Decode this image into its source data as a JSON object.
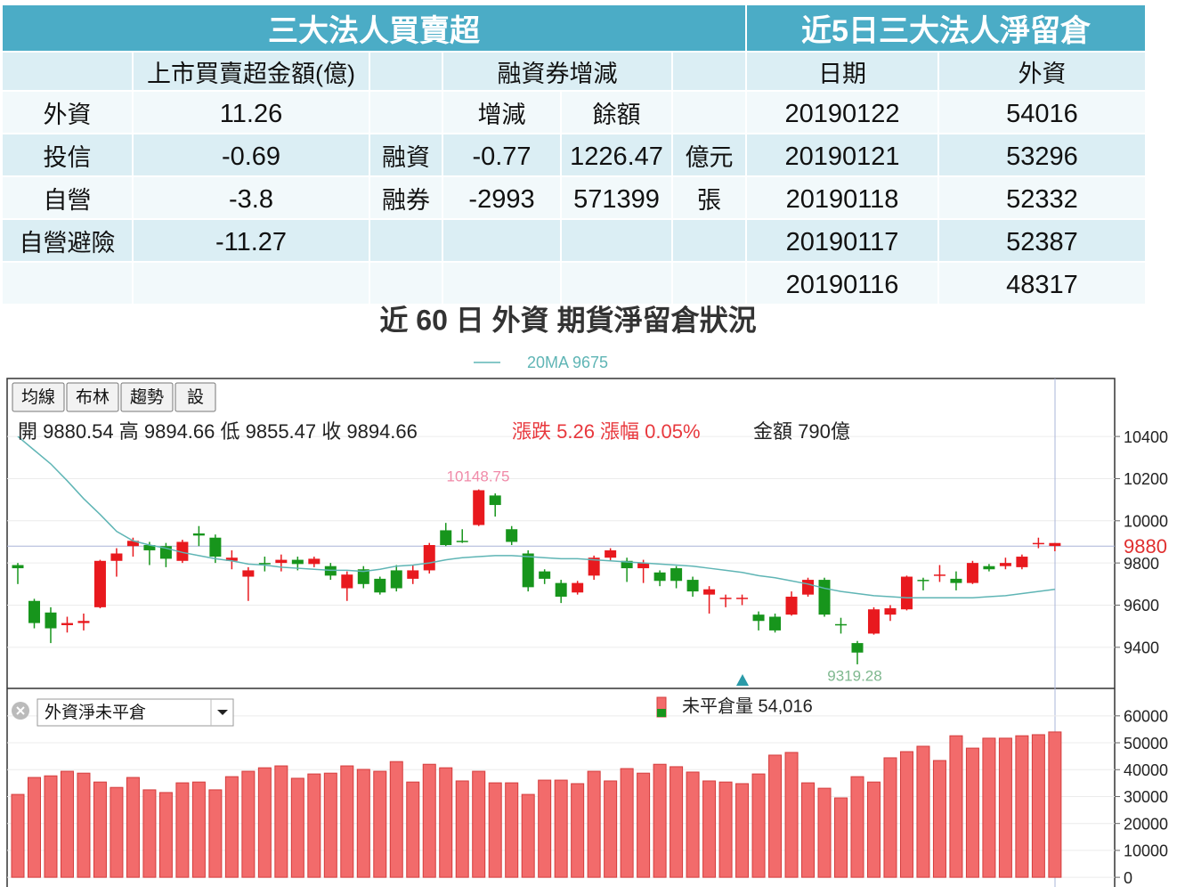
{
  "table": {
    "header_left": "三大法人買賣超",
    "header_right": "近5日三大法人淨留倉",
    "columns": {
      "amount": "上市買賣超金額(億)",
      "margin": "融資券增減",
      "change": "增減",
      "balance": "餘額",
      "date": "日期",
      "foreign": "外資"
    },
    "institutions": [
      {
        "name": "外資",
        "amount": 11.26
      },
      {
        "name": "投信",
        "amount": -0.69
      },
      {
        "name": "自營",
        "amount": -3.8
      },
      {
        "name": "自營避險",
        "amount": -11.27
      }
    ],
    "margin_rows": [
      {
        "name": "融資",
        "change": -0.77,
        "balance": 1226.47,
        "unit": "億元"
      },
      {
        "name": "融券",
        "change": -2993,
        "balance": 571399,
        "unit": "張"
      }
    ],
    "positions": [
      {
        "date": "20190122",
        "foreign": 54016
      },
      {
        "date": "20190121",
        "foreign": 53296
      },
      {
        "date": "20190118",
        "foreign": 52332
      },
      {
        "date": "20190117",
        "foreign": 52387
      },
      {
        "date": "20190116",
        "foreign": 48317
      }
    ]
  },
  "chart_title": "近 60 日 外資 期貨淨留倉狀況",
  "chart_data": [
    {
      "type": "candlestick",
      "legend_text": "20MA 9675",
      "buttons": [
        "均線",
        "布林",
        "趨勢",
        "設"
      ],
      "info": [
        {
          "text": "開 9880.54 高 9894.66 低 9855.47 收 9894.66",
          "color": "#222222"
        },
        {
          "text": "漲跌 5.26 漲幅 0.05%",
          "color": "#e8383d"
        },
        {
          "text": "金額 790億",
          "color": "#222222"
        }
      ],
      "annotations": [
        {
          "text": "10148.75",
          "color": "#f08aa8"
        },
        {
          "text": "9319.28",
          "color": "#7fb88f"
        }
      ],
      "current_price": 9880,
      "up_color": "#e8191e",
      "down_color": "#17951c",
      "ma_color": "#5fb5b5",
      "open": [
        9790,
        9620,
        9565,
        9505,
        9515,
        9590,
        9810,
        9880,
        9885,
        9880,
        9810,
        9940,
        9920,
        9810,
        9735,
        9800,
        9800,
        9815,
        9795,
        9785,
        9680,
        9770,
        9725,
        9765,
        9725,
        9765,
        9955,
        9905,
        9980,
        10120,
        9960,
        9845,
        9760,
        9705,
        9660,
        9740,
        9825,
        9810,
        9775,
        9755,
        9775,
        9720,
        9650,
        9630,
        9635,
        9555,
        9545,
        9555,
        9650,
        9720,
        9510,
        9420,
        9465,
        9555,
        9580,
        9720,
        9740,
        9725,
        9705,
        9785,
        9785,
        9780,
        9890,
        9880.54
      ],
      "close": [
        9775,
        9515,
        9490,
        9515,
        9525,
        9810,
        9845,
        9905,
        9860,
        9820,
        9900,
        9930,
        9830,
        9825,
        9765,
        9795,
        9815,
        9795,
        9820,
        9740,
        9745,
        9700,
        9660,
        9680,
        9765,
        9885,
        9885,
        9900,
        10145,
        10075,
        9900,
        9685,
        9725,
        9640,
        9705,
        9825,
        9860,
        9775,
        9800,
        9715,
        9715,
        9665,
        9675,
        9635,
        9635,
        9525,
        9480,
        9640,
        9720,
        9555,
        9505,
        9375,
        9580,
        9585,
        9735,
        9715,
        9745,
        9705,
        9800,
        9770,
        9800,
        9830,
        9895,
        9894.66
      ],
      "high": [
        9800,
        9630,
        9590,
        9545,
        9560,
        9815,
        9870,
        9920,
        9900,
        9895,
        9910,
        9975,
        9935,
        9860,
        9780,
        9830,
        9840,
        9830,
        9830,
        9800,
        9760,
        9785,
        9735,
        9790,
        9790,
        9895,
        9990,
        9960,
        10148.75,
        10130,
        9975,
        9860,
        9770,
        9720,
        9715,
        9835,
        9870,
        9825,
        9815,
        9765,
        9785,
        9735,
        9690,
        9650,
        9650,
        9570,
        9560,
        9665,
        9730,
        9730,
        9540,
        9430,
        9590,
        9600,
        9740,
        9730,
        9790,
        9760,
        9810,
        9795,
        9825,
        9840,
        9920,
        9894.66
      ],
      "low": [
        9700,
        9490,
        9420,
        9470,
        9480,
        9585,
        9735,
        9830,
        9790,
        9780,
        9800,
        9880,
        9800,
        9770,
        9620,
        9760,
        9760,
        9765,
        9780,
        9720,
        9620,
        9680,
        9650,
        9665,
        9700,
        9750,
        9880,
        9895,
        9975,
        10020,
        9885,
        9665,
        9700,
        9610,
        9650,
        9720,
        9810,
        9710,
        9705,
        9690,
        9680,
        9640,
        9560,
        9590,
        9600,
        9480,
        9470,
        9550,
        9640,
        9545,
        9465,
        9319.28,
        9460,
        9525,
        9575,
        9670,
        9710,
        9670,
        9700,
        9760,
        9770,
        9770,
        9870,
        9855.47
      ],
      "ma": [
        10400,
        10335,
        10270,
        10190,
        10105,
        10030,
        9950,
        9905,
        9885,
        9870,
        9850,
        9835,
        9820,
        9810,
        9795,
        9790,
        9780,
        9775,
        9770,
        9765,
        9765,
        9760,
        9770,
        9785,
        9790,
        9800,
        9815,
        9825,
        9830,
        9835,
        9835,
        9830,
        9825,
        9820,
        9820,
        9815,
        9810,
        9805,
        9800,
        9795,
        9790,
        9785,
        9775,
        9765,
        9755,
        9740,
        9730,
        9715,
        9700,
        9680,
        9665,
        9655,
        9645,
        9640,
        9635,
        9635,
        9635,
        9635,
        9635,
        9640,
        9645,
        9655,
        9665,
        9675
      ],
      "ylim": [
        9205,
        10675
      ],
      "yticks": [
        9400,
        9600,
        9800,
        10000,
        10200,
        10400
      ],
      "grid": true
    },
    {
      "type": "bar",
      "dropdown": "外資淨未平倉",
      "legend_text": "未平倉量 54,016",
      "color": "#f26b6b",
      "values": [
        30800,
        37100,
        37700,
        39400,
        38700,
        35400,
        33400,
        37100,
        32500,
        31500,
        35100,
        35400,
        32500,
        37400,
        39400,
        40700,
        41400,
        36800,
        38400,
        38700,
        41400,
        40100,
        39400,
        43000,
        35400,
        42000,
        40700,
        35800,
        39400,
        35100,
        35100,
        30800,
        36100,
        36100,
        34800,
        39400,
        35800,
        40400,
        38700,
        42000,
        41100,
        39100,
        35800,
        35400,
        34800,
        38400,
        45400,
        46400,
        35100,
        33100,
        29500,
        37400,
        35400,
        44400,
        46700,
        48700,
        43400,
        52600,
        48000,
        51700,
        51700,
        52600,
        53000,
        54016
      ],
      "ylim": [
        -3600,
        70200
      ],
      "yticks": [
        0,
        10000,
        20000,
        30000,
        40000,
        50000,
        60000
      ],
      "grid": true
    }
  ]
}
